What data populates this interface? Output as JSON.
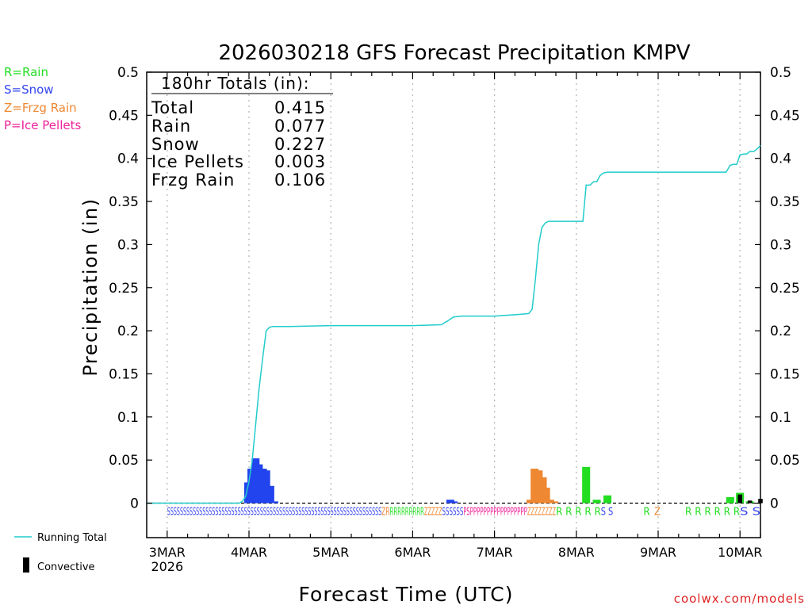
{
  "chart_data": {
    "type": "bar",
    "title": "2026030218 GFS Forecast Precipitation KMPV",
    "xlabel": "Forecast Time (UTC)",
    "ylabel": "Precipitation  (in)",
    "ylim": [
      -0.04,
      0.5
    ],
    "xlim_days": [
      -0.25,
      7.25
    ],
    "y_ticks": [
      0,
      0.05,
      0.1,
      0.15,
      0.2,
      0.25,
      0.3,
      0.35,
      0.4,
      0.45,
      0.5
    ],
    "y_tick_labels": [
      "0",
      "0.05",
      "0.1",
      "0.15",
      "0.2",
      "0.25",
      "0.3",
      "0.35",
      "0.4",
      "0.45",
      "0.5"
    ],
    "x_ticks": [
      {
        "day": 0,
        "label": "3MAR",
        "sublabel": "2026"
      },
      {
        "day": 1,
        "label": "4MAR"
      },
      {
        "day": 2,
        "label": "5MAR"
      },
      {
        "day": 3,
        "label": "6MAR"
      },
      {
        "day": 4,
        "label": "7MAR"
      },
      {
        "day": 5,
        "label": "8MAR"
      },
      {
        "day": 6,
        "label": "9MAR"
      },
      {
        "day": 7,
        "label": "10MAR"
      }
    ],
    "legend": [
      {
        "label": "R=Rain",
        "color": "#22dd22"
      },
      {
        "label": "S=Snow",
        "color": "#3344ee"
      },
      {
        "label": "Z=Frzg Rain",
        "color": "#ee8833"
      },
      {
        "label": "P=Ice Pellets",
        "color": "#ee2299"
      }
    ],
    "bottom_legend": {
      "running_total": "Running Total",
      "convective": "Convective"
    },
    "totals": {
      "heading": "180hr Totals (in):",
      "rows": [
        {
          "label": "Total",
          "value": "0.415"
        },
        {
          "label": "Rain",
          "value": "0.077"
        },
        {
          "label": "Snow",
          "value": "0.227"
        },
        {
          "label": "Ice Pellets",
          "value": "0.003"
        },
        {
          "label": "Frzg Rain",
          "value": "0.106"
        }
      ]
    },
    "series": [
      {
        "name": "Snow",
        "color": "#2244ee",
        "bars": [
          [
            0.99,
            0.024
          ],
          [
            1.03,
            0.04
          ],
          [
            1.08,
            0.052
          ],
          [
            1.12,
            0.045
          ],
          [
            1.17,
            0.04
          ],
          [
            1.21,
            0.038
          ],
          [
            1.26,
            0.02
          ],
          [
            1.31,
            0.002
          ],
          [
            3.46,
            0.004
          ],
          [
            3.5,
            0.002
          ]
        ]
      },
      {
        "name": "Frzg Rain",
        "color": "#ee8833",
        "bars": [
          [
            4.44,
            0.004
          ],
          [
            4.49,
            0.04
          ],
          [
            4.54,
            0.038
          ],
          [
            4.59,
            0.03
          ],
          [
            4.63,
            0.018
          ],
          [
            4.68,
            0.004
          ],
          [
            4.73,
            0.002
          ]
        ]
      },
      {
        "name": "Rain",
        "color": "#22dd22",
        "bars": [
          [
            5.12,
            0.042
          ],
          [
            5.25,
            0.004
          ],
          [
            5.38,
            0.009
          ],
          [
            6.88,
            0.007
          ],
          [
            7.0,
            0.012
          ],
          [
            7.12,
            0.002
          ]
        ]
      },
      {
        "name": "Convective",
        "color": "#000000",
        "bars": [
          [
            7.0,
            0.01
          ],
          [
            7.12,
            0.003
          ],
          [
            7.25,
            0.005
          ]
        ]
      }
    ],
    "running_total": {
      "name": "Running Total",
      "color": "#22cccc",
      "x": [
        -0.25,
        0.88,
        0.92,
        0.96,
        1.0,
        1.04,
        1.08,
        1.12,
        1.17,
        1.21,
        1.25,
        1.29,
        1.33,
        1.5,
        2.0,
        2.5,
        3.0,
        3.35,
        3.42,
        3.5,
        3.6,
        4.0,
        4.3,
        4.42,
        4.46,
        4.5,
        4.54,
        4.58,
        4.62,
        4.66,
        4.75,
        5.08,
        5.12,
        5.17,
        5.21,
        5.25,
        5.29,
        5.33,
        5.38,
        5.42,
        5.5,
        6.0,
        6.5,
        6.83,
        6.88,
        6.92,
        6.96,
        7.0,
        7.04,
        7.08,
        7.12,
        7.17,
        7.21,
        7.25
      ],
      "y": [
        0.0,
        0.0,
        0.002,
        0.008,
        0.025,
        0.05,
        0.09,
        0.13,
        0.17,
        0.2,
        0.204,
        0.205,
        0.205,
        0.205,
        0.206,
        0.206,
        0.206,
        0.207,
        0.211,
        0.216,
        0.217,
        0.217,
        0.219,
        0.22,
        0.225,
        0.26,
        0.3,
        0.32,
        0.325,
        0.327,
        0.327,
        0.327,
        0.369,
        0.369,
        0.373,
        0.373,
        0.38,
        0.383,
        0.384,
        0.384,
        0.384,
        0.384,
        0.384,
        0.384,
        0.392,
        0.393,
        0.393,
        0.404,
        0.405,
        0.405,
        0.408,
        0.408,
        0.411,
        0.415
      ]
    },
    "ptype_rows": [
      {
        "x0": 0.0,
        "x1": 2.62,
        "text": "SSSSSSSSSSSSSSSSSSSSSSSSSSSSSSSSSSSSSSSSSSSSSSSSSSSSSSSSSSSSSSSSSSS",
        "color": "#3344ee"
      },
      {
        "x0": 2.62,
        "x1": 2.72,
        "text": "ZR",
        "color": "#ee8833"
      },
      {
        "x0": 2.72,
        "x1": 3.14,
        "text": "RRRRRRRRR",
        "color": "#22dd22"
      },
      {
        "x0": 3.14,
        "x1": 3.36,
        "text": "ZZZZZ",
        "color": "#ee8833"
      },
      {
        "x0": 3.36,
        "x1": 3.62,
        "text": "SSSSSS",
        "color": "#3344ee"
      },
      {
        "x0": 3.62,
        "x1": 3.7,
        "text": "PS",
        "color": "#ee2299"
      },
      {
        "x0": 3.7,
        "x1": 4.4,
        "text": "PPPPPPPPPPPPPPPPP",
        "color": "#ee2299"
      },
      {
        "x0": 4.4,
        "x1": 4.75,
        "text": "ZZZZZZZZ",
        "color": "#ee8833"
      },
      {
        "x0": 4.75,
        "x1": 5.3,
        "text": "R R R R R",
        "color": "#22dd22"
      },
      {
        "x0": 5.3,
        "x1": 5.45,
        "text": "S S",
        "color": "#3344ee"
      },
      {
        "x0": 5.82,
        "x1": 5.9,
        "text": "R",
        "color": "#22dd22"
      },
      {
        "x0": 5.95,
        "x1": 6.03,
        "text": "Z",
        "color": "#ee8833"
      },
      {
        "x0": 6.33,
        "x1": 7.0,
        "text": "R R R R R R",
        "color": "#22dd22"
      },
      {
        "x0": 7.0,
        "x1": 7.25,
        "text": "S S",
        "color": "#3344ee"
      }
    ],
    "credit": "coolwx.com/models"
  }
}
